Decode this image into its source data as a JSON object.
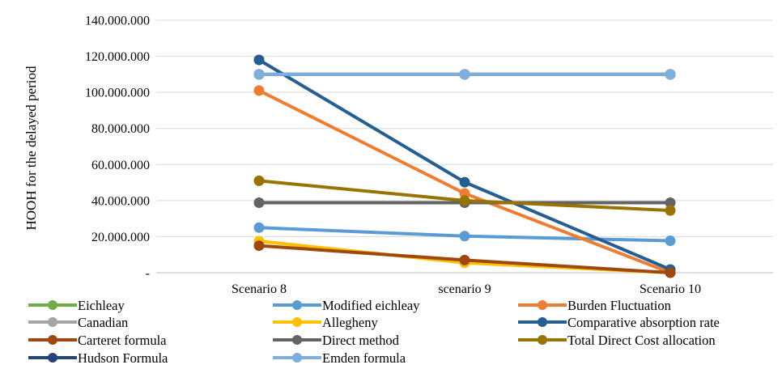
{
  "chart_data": {
    "type": "line",
    "ylabel": "HOOH for the delayed period",
    "xlabel": "",
    "categories": [
      "Scenario 8",
      "scenario 9",
      "Scenario 10"
    ],
    "ylim": [
      0,
      140000000
    ],
    "y_ticks": [
      {
        "value": 0,
        "label": "-"
      },
      {
        "value": 20000000,
        "label": "20.000.000"
      },
      {
        "value": 40000000,
        "label": "40.000.000"
      },
      {
        "value": 60000000,
        "label": "60.000.000"
      },
      {
        "value": 80000000,
        "label": "80.000.000"
      },
      {
        "value": 100000000,
        "label": "100.000.000"
      },
      {
        "value": 120000000,
        "label": "120.000.000"
      },
      {
        "value": 140000000,
        "label": "140.000.000"
      }
    ],
    "grid": true,
    "legend_position": "bottom",
    "series": [
      {
        "name": "Eichleay",
        "color": "#70AD47",
        "values": [
          110000000,
          110000000,
          110000000
        ]
      },
      {
        "name": "Modified eichleay",
        "color": "#5B9BD5",
        "values": [
          25000000,
          20300000,
          17700000
        ]
      },
      {
        "name": "Burden Fluctuation",
        "color": "#ED7D31",
        "values": [
          101000000,
          44000000,
          0
        ]
      },
      {
        "name": "Canadian",
        "color": "#A5A5A5",
        "values": [
          110000000,
          110000000,
          110000000
        ]
      },
      {
        "name": "Allegheny",
        "color": "#FFC000",
        "values": [
          17500000,
          5500000,
          0
        ]
      },
      {
        "name": "Comparative absorption rate",
        "color": "#255E91",
        "values": [
          118000000,
          50200000,
          1800000
        ]
      },
      {
        "name": "Carteret formula",
        "color": "#9E480E",
        "values": [
          15000000,
          7000000,
          0
        ]
      },
      {
        "name": "Direct method",
        "color": "#636363",
        "values": [
          38800000,
          38800000,
          38800000
        ]
      },
      {
        "name": "Total Direct Cost allocation",
        "color": "#997300",
        "values": [
          51000000,
          40000000,
          34500000
        ]
      },
      {
        "name": "Hudson Formula",
        "color": "#264478",
        "values": [
          110000000,
          110000000,
          110000000
        ]
      },
      {
        "name": "Emden formula",
        "color": "#7CAFDD",
        "values": [
          110000000,
          110000000,
          110000000
        ]
      }
    ]
  }
}
